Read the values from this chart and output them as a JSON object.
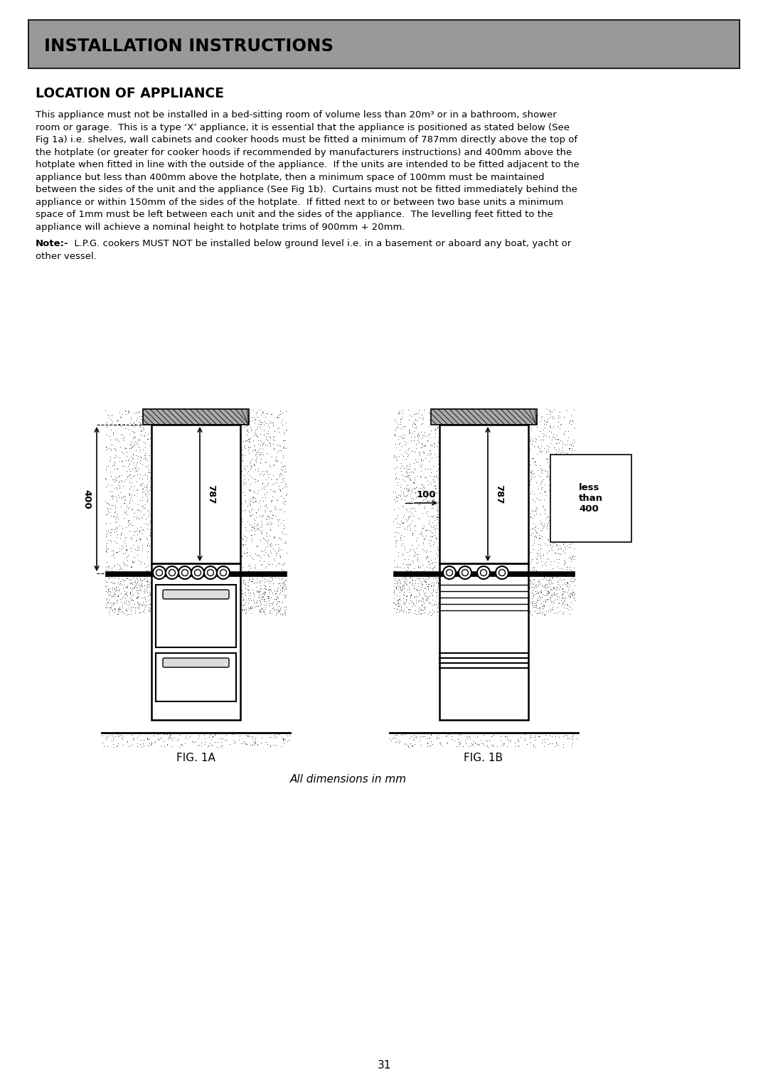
{
  "page_bg": "#ffffff",
  "header_bg": "#999999",
  "header_text": "INSTALLATION INSTRUCTIONS",
  "section_title": "LOCATION OF APPLIANCE",
  "body_text_lines": [
    "This appliance must not be installed in a bed-sitting room of volume less than 20m³ or in a bathroom, shower",
    "room or garage.  This is a type ‘X’ appliance, it is essential that the appliance is positioned as stated below (See",
    "Fig 1a) i.e. shelves, wall cabinets and cooker hoods must be fitted a minimum of 787mm directly above the top of",
    "the hotplate (or greater for cooker hoods if recommended by manufacturers instructions) and 400mm above the",
    "hotplate when fitted in line with the outside of the appliance.  If the units are intended to be fitted adjacent to the",
    "appliance but less than 400mm above the hotplate, then a minimum space of 100mm must be maintained",
    "between the sides of the unit and the appliance (See Fig 1b).  Curtains must not be fitted immediately behind the",
    "appliance or within 150mm of the sides of the hotplate.  If fitted next to or between two base units a minimum",
    "space of 1mm must be left between each unit and the sides of the appliance.  The levelling feet fitted to the",
    "appliance will achieve a nominal height to hotplate trims of 900mm + 20mm."
  ],
  "note_bold": "Note:-",
  "note_rest": "  L.P.G. cookers MUST NOT be installed below ground level i.e. in a basement or aboard any boat, yacht or",
  "note_line2": "other vessel.",
  "fig1a_label": "FIG. 1A",
  "fig1b_label": "FIG. 1B",
  "dim_label": "All dimensions in mm",
  "page_number": "31"
}
